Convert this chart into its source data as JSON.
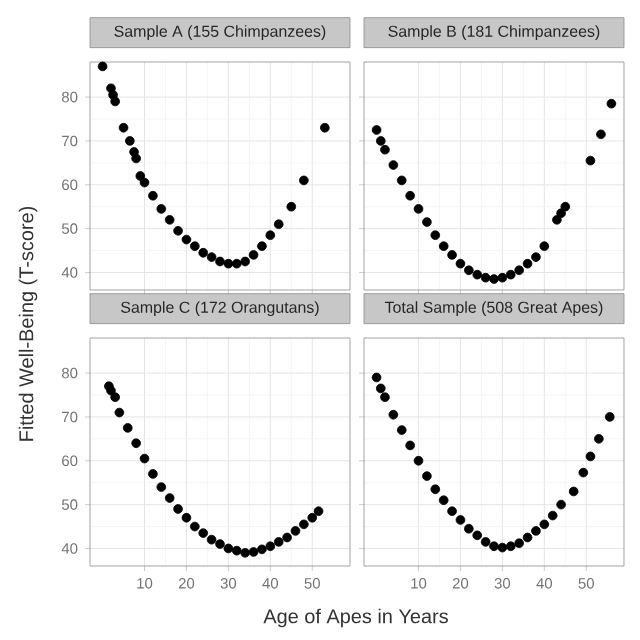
{
  "chart_data": [
    {
      "type": "scatter",
      "title": "Sample A (155 Chimpanzees)",
      "ylabel": "Fitted Well-Being (T-score)",
      "xlim": [
        -3,
        59
      ],
      "ylim": [
        36,
        88
      ],
      "xticks": [
        10,
        20,
        30,
        40,
        50
      ],
      "yticks": [
        40,
        50,
        60,
        70,
        80
      ],
      "grid": true,
      "marker": "circle",
      "tick_labels": "y",
      "series": [
        {
          "color": "#000000",
          "x": [
            0,
            2,
            2.5,
            3,
            5,
            6.5,
            7.5,
            8,
            9,
            10,
            12,
            14,
            16,
            18,
            20,
            22,
            24,
            26,
            28,
            30,
            32,
            34,
            36,
            38,
            40,
            42,
            45,
            48,
            53
          ],
          "values": [
            87,
            82,
            80.5,
            79,
            73,
            70,
            67.5,
            66,
            62,
            60.5,
            57.5,
            54.5,
            52,
            49.5,
            47.5,
            46,
            44.5,
            43.5,
            42.5,
            42,
            42,
            42.5,
            44,
            46,
            48.5,
            51,
            55,
            61,
            73
          ]
        }
      ]
    },
    {
      "type": "scatter",
      "title": "Sample B (181 Chimpanzees)",
      "xlim": [
        -3,
        59
      ],
      "ylim": [
        36,
        88
      ],
      "xticks": [
        10,
        20,
        30,
        40,
        50
      ],
      "yticks": [
        40,
        50,
        60,
        70,
        80
      ],
      "grid": true,
      "marker": "circle",
      "tick_labels": false,
      "series": [
        {
          "color": "#000000",
          "x": [
            0,
            1,
            2,
            4,
            6,
            8,
            10,
            12,
            14,
            16,
            18,
            20,
            22,
            24,
            26,
            28,
            30,
            32,
            34,
            36,
            38,
            40,
            43,
            44,
            45,
            51,
            53.5,
            56
          ],
          "values": [
            72.5,
            70,
            68,
            64.5,
            61,
            57.5,
            54.5,
            51.5,
            48.5,
            46,
            44,
            42,
            40.5,
            39.5,
            38.8,
            38.5,
            38.8,
            39.5,
            40.5,
            42,
            43.5,
            46,
            52,
            53.5,
            55,
            65.5,
            71.5,
            78.5
          ]
        }
      ]
    },
    {
      "type": "scatter",
      "title": "Sample C (172 Orangutans)",
      "xlabel": "Age of Apes in Years",
      "xlim": [
        -3,
        59
      ],
      "ylim": [
        36,
        88
      ],
      "xticks": [
        10,
        20,
        30,
        40,
        50
      ],
      "yticks": [
        40,
        50,
        60,
        70,
        80
      ],
      "grid": true,
      "marker": "circle",
      "series": [
        {
          "color": "#000000",
          "x": [
            1.5,
            2,
            3,
            4,
            6,
            8,
            10,
            12,
            14,
            16,
            18,
            20,
            22,
            24,
            26,
            28,
            30,
            32,
            34,
            36,
            38,
            40,
            42,
            44,
            46,
            48,
            50,
            51.5
          ],
          "values": [
            77,
            76,
            74.5,
            71,
            67.5,
            64,
            60.5,
            57,
            54,
            51.5,
            49,
            47,
            45,
            43.5,
            42,
            41,
            40,
            39.5,
            39,
            39.2,
            39.8,
            40.5,
            41.5,
            42.5,
            44,
            45.5,
            47,
            48.5
          ]
        }
      ]
    },
    {
      "type": "scatter",
      "title": "Total Sample (508 Great Apes)",
      "xlim": [
        -3,
        59
      ],
      "ylim": [
        36,
        88
      ],
      "xticks": [
        10,
        20,
        30,
        40,
        50
      ],
      "yticks": [
        40,
        50,
        60,
        70,
        80
      ],
      "grid": true,
      "marker": "circle",
      "tick_labels": "x",
      "series": [
        {
          "color": "#000000",
          "x": [
            0,
            1,
            2,
            4,
            6,
            8,
            10,
            12,
            14,
            16,
            18,
            20,
            22,
            24,
            26,
            28,
            30,
            32,
            34,
            36,
            38,
            40,
            42,
            44,
            47,
            49.3,
            51,
            53,
            55.6
          ],
          "values": [
            79,
            76.5,
            74.5,
            70.5,
            67,
            63.5,
            60,
            56.5,
            53.5,
            51,
            48.5,
            46.5,
            44.5,
            43,
            41.5,
            40.5,
            40.2,
            40.5,
            41.2,
            42.5,
            44,
            45.5,
            47.5,
            50,
            53,
            57.3,
            61,
            65,
            70
          ]
        }
      ]
    }
  ]
}
